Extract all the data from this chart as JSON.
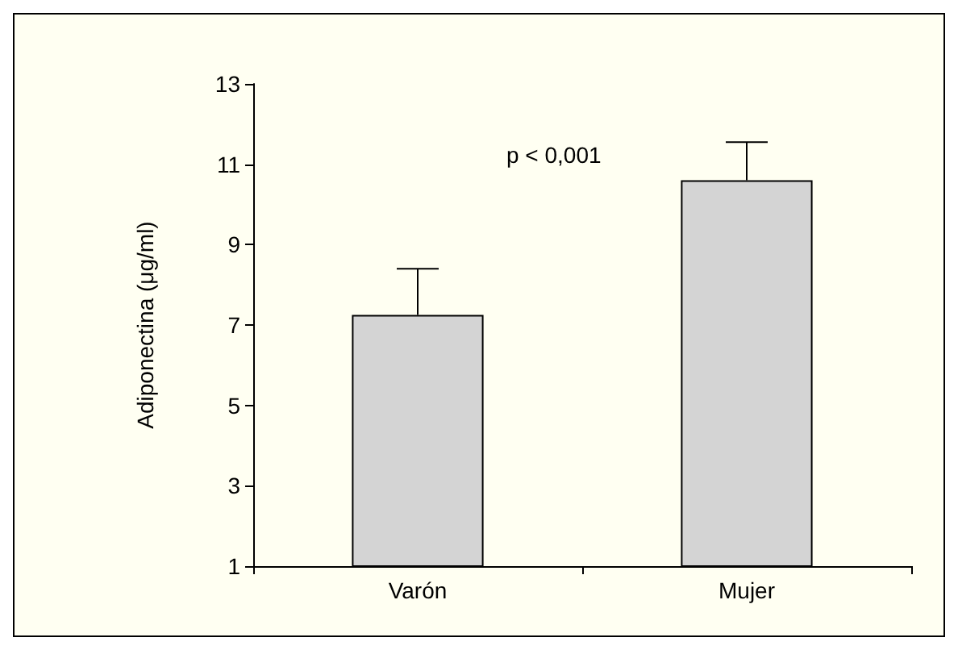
{
  "chart_data": {
    "type": "bar",
    "ylabel": "Adiponectina (μg/ml)",
    "categories": [
      "Varón",
      "Mujer"
    ],
    "values": [
      7.25,
      10.6
    ],
    "errors": [
      [
        7.25,
        8.4
      ],
      [
        10.6,
        11.55
      ]
    ],
    "color": "#d4d4d4",
    "ylim": [
      1,
      13
    ],
    "yticks": [
      1,
      3,
      5,
      7,
      9,
      11,
      13
    ],
    "grid": false,
    "annotations": [
      "p < 0,001"
    ]
  }
}
